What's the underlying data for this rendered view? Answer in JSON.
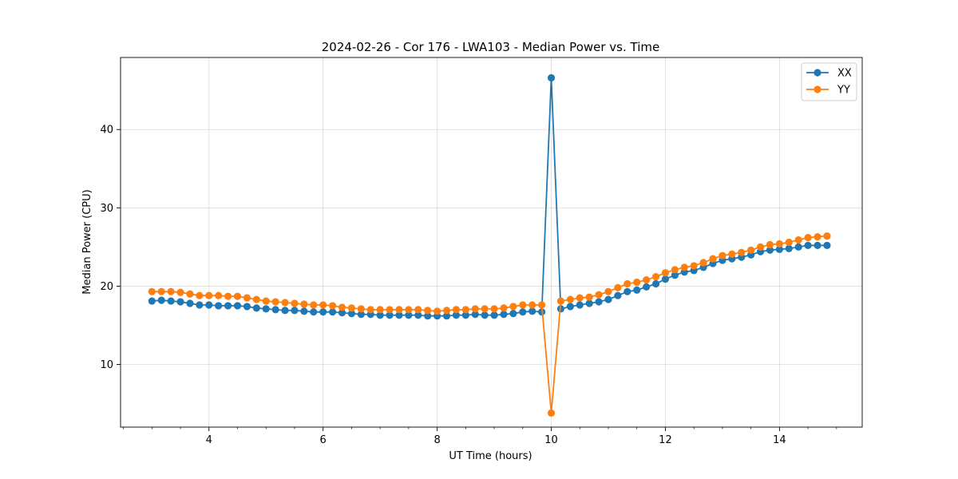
{
  "chart_data": {
    "type": "line",
    "title": "2024-02-26 - Cor 176 - LWA103 - Median Power vs. Time",
    "xlabel": "UT Time (hours)",
    "ylabel": "Median Power (CPU)",
    "xlim": [
      2.45,
      15.45
    ],
    "ylim": [
      2.0,
      49.2
    ],
    "xticks": [
      4,
      6,
      8,
      10,
      12,
      14
    ],
    "xtick_labels": [
      "4",
      "6",
      "8",
      "10",
      "12",
      "14"
    ],
    "yticks": [
      10,
      20,
      30,
      40
    ],
    "ytick_labels": [
      "10",
      "20",
      "30",
      "40"
    ],
    "grid": true,
    "legend_position": "top-right",
    "x": [
      3.0,
      3.1667,
      3.3333,
      3.5,
      3.6667,
      3.8333,
      4.0,
      4.1667,
      4.3333,
      4.5,
      4.6667,
      4.8333,
      5.0,
      5.1667,
      5.3333,
      5.5,
      5.6667,
      5.8333,
      6.0,
      6.1667,
      6.3333,
      6.5,
      6.6667,
      6.8333,
      7.0,
      7.1667,
      7.3333,
      7.5,
      7.6667,
      7.8333,
      8.0,
      8.1667,
      8.3333,
      8.5,
      8.6667,
      8.8333,
      9.0,
      9.1667,
      9.3333,
      9.5,
      9.6667,
      9.8333,
      10.0,
      10.1667,
      10.3333,
      10.5,
      10.6667,
      10.8333,
      11.0,
      11.1667,
      11.3333,
      11.5,
      11.6667,
      11.8333,
      12.0,
      12.1667,
      12.3333,
      12.5,
      12.6667,
      12.8333,
      13.0,
      13.1667,
      13.3333,
      13.5,
      13.6667,
      13.8333,
      14.0,
      14.1667,
      14.3333,
      14.5,
      14.6667,
      14.8333
    ],
    "series": [
      {
        "name": "XX",
        "color": "#1f77b4",
        "values": [
          18.1,
          18.2,
          18.1,
          18.0,
          17.8,
          17.6,
          17.6,
          17.5,
          17.5,
          17.5,
          17.4,
          17.2,
          17.1,
          17.0,
          16.9,
          16.9,
          16.8,
          16.7,
          16.7,
          16.7,
          16.6,
          16.5,
          16.4,
          16.4,
          16.3,
          16.3,
          16.3,
          16.3,
          16.3,
          16.2,
          16.2,
          16.2,
          16.3,
          16.3,
          16.4,
          16.3,
          16.3,
          16.4,
          16.5,
          16.7,
          16.8,
          16.7,
          46.6,
          17.1,
          17.4,
          17.6,
          17.8,
          18.0,
          18.3,
          18.8,
          19.3,
          19.5,
          19.9,
          20.3,
          20.9,
          21.4,
          21.8,
          22.0,
          22.4,
          22.9,
          23.3,
          23.5,
          23.7,
          24.0,
          24.4,
          24.6,
          24.7,
          24.8,
          25.0,
          25.2,
          25.2,
          25.2
        ]
      },
      {
        "name": "YY",
        "color": "#ff7f0e",
        "values": [
          19.3,
          19.3,
          19.3,
          19.2,
          19.0,
          18.8,
          18.8,
          18.8,
          18.7,
          18.7,
          18.5,
          18.3,
          18.1,
          18.0,
          17.9,
          17.8,
          17.7,
          17.6,
          17.6,
          17.5,
          17.3,
          17.2,
          17.1,
          17.0,
          17.0,
          17.0,
          17.0,
          17.0,
          17.0,
          16.9,
          16.8,
          16.9,
          17.0,
          17.0,
          17.1,
          17.1,
          17.1,
          17.2,
          17.4,
          17.6,
          17.6,
          17.6,
          3.8,
          18.1,
          18.3,
          18.5,
          18.6,
          18.9,
          19.3,
          19.8,
          20.3,
          20.5,
          20.8,
          21.2,
          21.7,
          22.1,
          22.4,
          22.6,
          23.0,
          23.5,
          23.9,
          24.1,
          24.3,
          24.6,
          25.0,
          25.3,
          25.4,
          25.6,
          25.9,
          26.2,
          26.3,
          26.4
        ]
      }
    ]
  }
}
